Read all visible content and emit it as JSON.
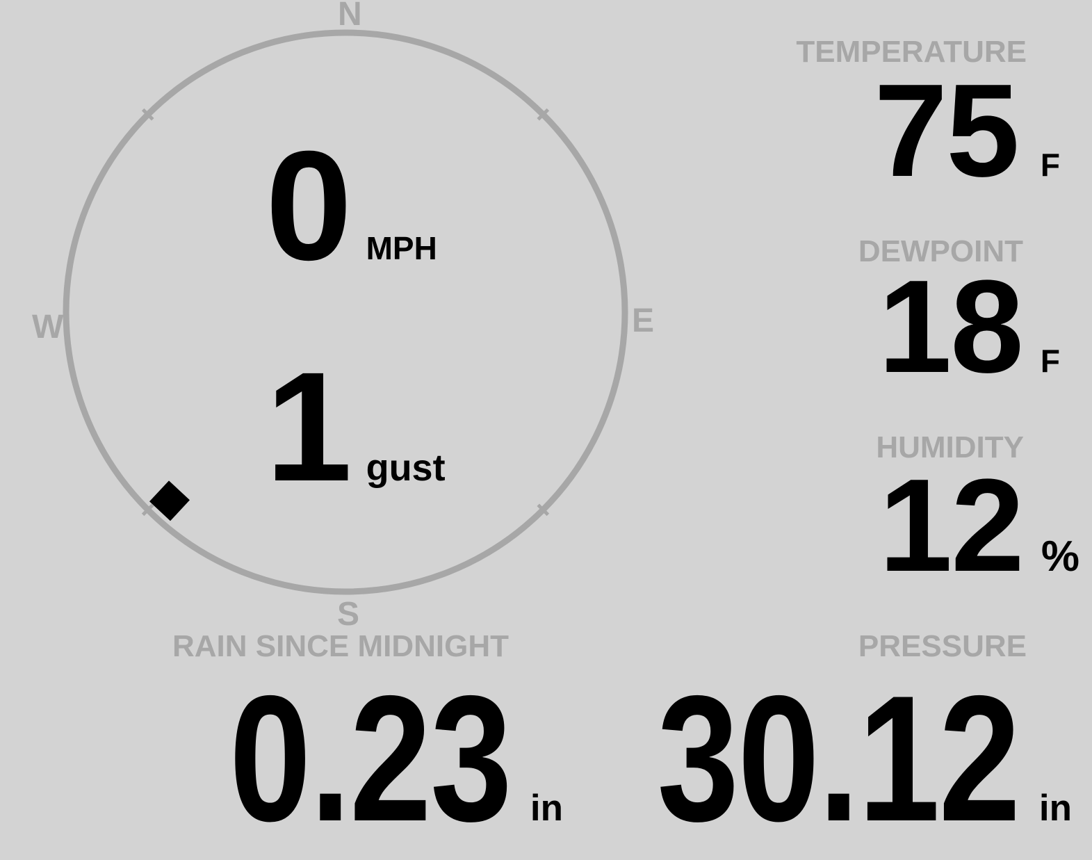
{
  "colors": {
    "background": "#d3d3d3",
    "muted": "#a7a7a7",
    "text": "#000000"
  },
  "wind": {
    "compass": {
      "north": "N",
      "east": "E",
      "south": "S",
      "west": "W"
    },
    "speed": {
      "value": "0",
      "unit": "MPH"
    },
    "gust": {
      "value": "1",
      "unit": "gust"
    },
    "direction_deg": 223
  },
  "metrics": {
    "temperature": {
      "label": "TEMPERATURE",
      "value": "75",
      "unit": "F"
    },
    "dewpoint": {
      "label": "DEWPOINT",
      "value": "18",
      "unit": "F"
    },
    "humidity": {
      "label": "HUMIDITY",
      "value": "12",
      "unit": "%"
    },
    "pressure": {
      "label": "PRESSURE",
      "value": "30.12",
      "unit": "in"
    },
    "rain_since_midnight": {
      "label": "RAIN SINCE MIDNIGHT",
      "value": "0.23",
      "unit": "in"
    }
  }
}
